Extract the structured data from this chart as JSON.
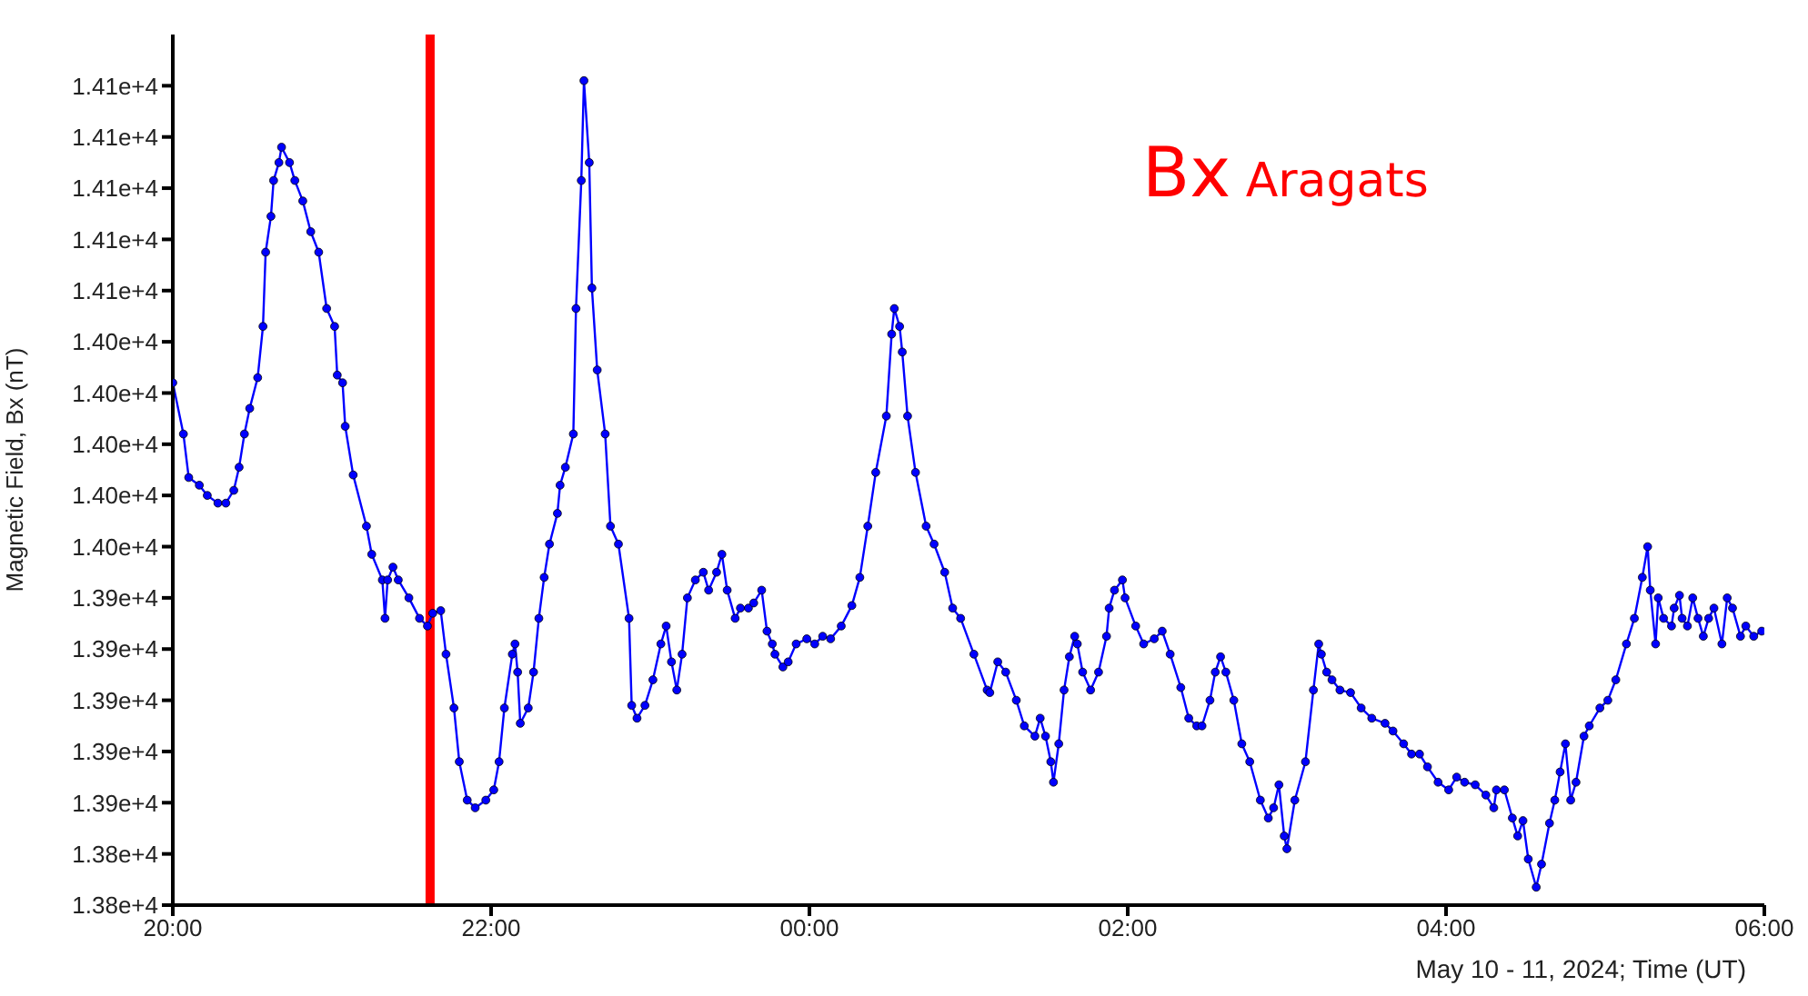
{
  "chart_data": {
    "type": "line",
    "xlabel": "May 10 - 11, 2024; Time (UT)",
    "ylabel": "Magnetic Field, Bx (nT)",
    "annotations": [
      "Bx Aragats"
    ],
    "xlim": [
      "2024-05-10T20:00",
      "2024-05-11T06:00"
    ],
    "xticks": [
      {
        "value": "2024-05-10T20:00",
        "label": "20:00"
      },
      {
        "value": "2024-05-10T22:00",
        "label": "22:00"
      },
      {
        "value": "2024-05-11T00:00",
        "label": "00:00"
      },
      {
        "value": "2024-05-11T02:00",
        "label": "02:00"
      },
      {
        "value": "2024-05-11T04:00",
        "label": "04:00"
      },
      {
        "value": "2024-05-11T06:00",
        "label": "06:00"
      }
    ],
    "ylim": [
      13820,
      14160
    ],
    "yticks": [
      {
        "value": 13820,
        "label": "1.38e+4"
      },
      {
        "value": 13840,
        "label": "1.38e+4"
      },
      {
        "value": 13860,
        "label": "1.39e+4"
      },
      {
        "value": 13880,
        "label": "1.39e+4"
      },
      {
        "value": 13900,
        "label": "1.39e+4"
      },
      {
        "value": 13920,
        "label": "1.39e+4"
      },
      {
        "value": 13940,
        "label": "1.39e+4"
      },
      {
        "value": 13960,
        "label": "1.40e+4"
      },
      {
        "value": 13980,
        "label": "1.40e+4"
      },
      {
        "value": 14000,
        "label": "1.40e+4"
      },
      {
        "value": 14020,
        "label": "1.40e+4"
      },
      {
        "value": 14040,
        "label": "1.40e+4"
      },
      {
        "value": 14060,
        "label": "1.41e+4"
      },
      {
        "value": 14080,
        "label": "1.41e+4"
      },
      {
        "value": 14100,
        "label": "1.41e+4"
      },
      {
        "value": 14120,
        "label": "1.41e+4"
      },
      {
        "value": 14140,
        "label": "1.41e+4"
      }
    ],
    "grid": false,
    "legend": false,
    "marker": "circle",
    "line_style": "solid",
    "ref_lines": [
      {
        "axis": "x",
        "value": "2024-05-10T21:37",
        "color": "#ff0000"
      }
    ],
    "x": [
      "2024-05-10T20:00",
      "2024-05-10T20:04",
      "2024-05-10T20:06",
      "2024-05-10T20:10",
      "2024-05-10T20:13",
      "2024-05-10T20:17",
      "2024-05-10T20:20",
      "2024-05-10T20:23",
      "2024-05-10T20:25",
      "2024-05-10T20:27",
      "2024-05-10T20:29",
      "2024-05-10T20:32",
      "2024-05-10T20:34",
      "2024-05-10T20:35",
      "2024-05-10T20:37",
      "2024-05-10T20:38",
      "2024-05-10T20:40",
      "2024-05-10T20:41",
      "2024-05-10T20:44",
      "2024-05-10T20:46",
      "2024-05-10T20:49",
      "2024-05-10T20:52",
      "2024-05-10T20:55",
      "2024-05-10T20:58",
      "2024-05-10T21:01",
      "2024-05-10T21:02",
      "2024-05-10T21:04",
      "2024-05-10T21:05",
      "2024-05-10T21:08",
      "2024-05-10T21:13",
      "2024-05-10T21:15",
      "2024-05-10T21:19",
      "2024-05-10T21:20",
      "2024-05-10T21:21",
      "2024-05-10T21:23",
      "2024-05-10T21:25",
      "2024-05-10T21:29",
      "2024-05-10T21:33",
      "2024-05-10T21:36",
      "2024-05-10T21:38",
      "2024-05-10T21:41",
      "2024-05-10T21:43",
      "2024-05-10T21:46",
      "2024-05-10T21:48",
      "2024-05-10T21:51",
      "2024-05-10T21:54",
      "2024-05-10T21:58",
      "2024-05-10T22:01",
      "2024-05-10T22:03",
      "2024-05-10T22:05",
      "2024-05-10T22:08",
      "2024-05-10T22:09",
      "2024-05-10T22:10",
      "2024-05-10T22:11",
      "2024-05-10T22:14",
      "2024-05-10T22:16",
      "2024-05-10T22:18",
      "2024-05-10T22:20",
      "2024-05-10T22:22",
      "2024-05-10T22:25",
      "2024-05-10T22:26",
      "2024-05-10T22:28",
      "2024-05-10T22:31",
      "2024-05-10T22:32",
      "2024-05-10T22:34",
      "2024-05-10T22:35",
      "2024-05-10T22:37",
      "2024-05-10T22:38",
      "2024-05-10T22:40",
      "2024-05-10T22:43",
      "2024-05-10T22:45",
      "2024-05-10T22:48",
      "2024-05-10T22:52",
      "2024-05-10T22:53",
      "2024-05-10T22:55",
      "2024-05-10T22:58",
      "2024-05-10T23:01",
      "2024-05-10T23:04",
      "2024-05-10T23:06",
      "2024-05-10T23:08",
      "2024-05-10T23:10",
      "2024-05-10T23:12",
      "2024-05-10T23:14",
      "2024-05-10T23:17",
      "2024-05-10T23:20",
      "2024-05-10T23:22",
      "2024-05-10T23:25",
      "2024-05-10T23:27",
      "2024-05-10T23:29",
      "2024-05-10T23:32",
      "2024-05-10T23:34",
      "2024-05-10T23:37",
      "2024-05-10T23:39",
      "2024-05-10T23:42",
      "2024-05-10T23:44",
      "2024-05-10T23:46",
      "2024-05-10T23:47",
      "2024-05-10T23:50",
      "2024-05-10T23:52",
      "2024-05-10T23:55",
      "2024-05-10T23:59",
      "2024-05-11T00:02",
      "2024-05-11T00:05",
      "2024-05-11T00:08",
      "2024-05-11T00:12",
      "2024-05-11T00:16",
      "2024-05-11T00:19",
      "2024-05-11T00:22",
      "2024-05-11T00:25",
      "2024-05-11T00:29",
      "2024-05-11T00:31",
      "2024-05-11T00:32",
      "2024-05-11T00:34",
      "2024-05-11T00:35",
      "2024-05-11T00:37",
      "2024-05-11T00:40",
      "2024-05-11T00:44",
      "2024-05-11T00:47",
      "2024-05-11T00:51",
      "2024-05-11T00:54",
      "2024-05-11T00:57",
      "2024-05-11T01:02",
      "2024-05-11T01:07",
      "2024-05-11T01:08",
      "2024-05-11T01:11",
      "2024-05-11T01:14",
      "2024-05-11T01:18",
      "2024-05-11T01:21",
      "2024-05-11T01:25",
      "2024-05-11T01:27",
      "2024-05-11T01:29",
      "2024-05-11T01:31",
      "2024-05-11T01:32",
      "2024-05-11T01:34",
      "2024-05-11T01:36",
      "2024-05-11T01:38",
      "2024-05-11T01:40",
      "2024-05-11T01:41",
      "2024-05-11T01:43",
      "2024-05-11T01:46",
      "2024-05-11T01:49",
      "2024-05-11T01:52",
      "2024-05-11T01:53",
      "2024-05-11T01:55",
      "2024-05-11T01:58",
      "2024-05-11T01:59",
      "2024-05-11T02:03",
      "2024-05-11T02:06",
      "2024-05-11T02:10",
      "2024-05-11T02:13",
      "2024-05-11T02:16",
      "2024-05-11T02:20",
      "2024-05-11T02:23",
      "2024-05-11T02:26",
      "2024-05-11T02:28",
      "2024-05-11T02:31",
      "2024-05-11T02:33",
      "2024-05-11T02:35",
      "2024-05-11T02:37",
      "2024-05-11T02:40",
      "2024-05-11T02:43",
      "2024-05-11T02:46",
      "2024-05-11T02:50",
      "2024-05-11T02:53",
      "2024-05-11T02:55",
      "2024-05-11T02:57",
      "2024-05-11T02:59",
      "2024-05-11T03:00",
      "2024-05-11T03:03",
      "2024-05-11T03:07",
      "2024-05-11T03:10",
      "2024-05-11T03:12",
      "2024-05-11T03:13",
      "2024-05-11T03:15",
      "2024-05-11T03:17",
      "2024-05-11T03:20",
      "2024-05-11T03:24",
      "2024-05-11T03:28",
      "2024-05-11T03:32",
      "2024-05-11T03:37",
      "2024-05-11T03:40",
      "2024-05-11T03:44",
      "2024-05-11T03:47",
      "2024-05-11T03:50",
      "2024-05-11T03:53",
      "2024-05-11T03:57",
      "2024-05-11T04:01",
      "2024-05-11T04:04",
      "2024-05-11T04:07",
      "2024-05-11T04:11",
      "2024-05-11T04:15",
      "2024-05-11T04:18",
      "2024-05-11T04:19",
      "2024-05-11T04:22",
      "2024-05-11T04:25",
      "2024-05-11T04:27",
      "2024-05-11T04:29",
      "2024-05-11T04:31",
      "2024-05-11T04:34",
      "2024-05-11T04:36",
      "2024-05-11T04:39",
      "2024-05-11T04:41",
      "2024-05-11T04:43",
      "2024-05-11T04:45",
      "2024-05-11T04:47",
      "2024-05-11T04:49",
      "2024-05-11T04:52",
      "2024-05-11T04:54",
      "2024-05-11T04:58",
      "2024-05-11T05:01",
      "2024-05-11T05:04",
      "2024-05-11T05:08",
      "2024-05-11T05:11",
      "2024-05-11T05:14",
      "2024-05-11T05:16",
      "2024-05-11T05:17",
      "2024-05-11T05:19",
      "2024-05-11T05:20",
      "2024-05-11T05:22",
      "2024-05-11T05:25",
      "2024-05-11T05:26",
      "2024-05-11T05:28",
      "2024-05-11T05:29",
      "2024-05-11T05:31",
      "2024-05-11T05:33",
      "2024-05-11T05:35",
      "2024-05-11T05:37",
      "2024-05-11T05:39",
      "2024-05-11T05:41",
      "2024-05-11T05:44",
      "2024-05-11T05:46",
      "2024-05-11T05:48",
      "2024-05-11T05:51",
      "2024-05-11T05:53",
      "2024-05-11T05:56",
      "2024-05-11T05:59"
    ],
    "series": [
      {
        "color": "#0000ff",
        "values": [
          14024,
          14004,
          13987,
          13984,
          13980,
          13977,
          13977,
          13982,
          13991,
          14004,
          14014,
          14026,
          14046,
          14075,
          14089,
          14103,
          14110,
          14116,
          14110,
          14103,
          14095,
          14083,
          14075,
          14053,
          14046,
          14027,
          14024,
          14007,
          13988,
          13968,
          13957,
          13947,
          13932,
          13947,
          13952,
          13947,
          13940,
          13932,
          13929,
          13934,
          13935,
          13918,
          13897,
          13876,
          13861,
          13858,
          13861,
          13865,
          13876,
          13897,
          13918,
          13922,
          13911,
          13891,
          13897,
          13911,
          13932,
          13948,
          13961,
          13973,
          13984,
          13991,
          14004,
          14053,
          14103,
          14142,
          14110,
          14061,
          14029,
          14004,
          13968,
          13961,
          13932,
          13898,
          13893,
          13898,
          13908,
          13922,
          13929,
          13915,
          13904,
          13918,
          13940,
          13947,
          13950,
          13943,
          13950,
          13957,
          13943,
          13932,
          13936,
          13936,
          13938,
          13943,
          13927,
          13922,
          13918,
          13913,
          13915,
          13922,
          13924,
          13922,
          13925,
          13924,
          13929,
          13937,
          13948,
          13968,
          13989,
          14011,
          14043,
          14053,
          14046,
          14036,
          14011,
          13989,
          13968,
          13961,
          13950,
          13936,
          13932,
          13918,
          13904,
          13903,
          13915,
          13911,
          13900,
          13890,
          13886,
          13893,
          13886,
          13876,
          13868,
          13883,
          13904,
          13917,
          13925,
          13922,
          13911,
          13904,
          13911,
          13925,
          13936,
          13943,
          13947,
          13940,
          13929,
          13922,
          13924,
          13927,
          13918,
          13905,
          13893,
          13890,
          13890,
          13900,
          13911,
          13917,
          13911,
          13900,
          13883,
          13876,
          13861,
          13854,
          13858,
          13867,
          13847,
          13842,
          13861,
          13876,
          13904,
          13922,
          13918,
          13911,
          13908,
          13904,
          13903,
          13897,
          13893,
          13891,
          13888,
          13883,
          13879,
          13879,
          13874,
          13868,
          13865,
          13870,
          13868,
          13867,
          13863,
          13858,
          13865,
          13865,
          13854,
          13847,
          13853,
          13838,
          13827,
          13836,
          13852,
          13861,
          13872,
          13883,
          13861,
          13868,
          13886,
          13890,
          13897,
          13900,
          13908,
          13922,
          13932,
          13948,
          13960,
          13943,
          13922,
          13940,
          13932,
          13929,
          13936,
          13941,
          13932,
          13929,
          13940,
          13932,
          13925,
          13932,
          13936,
          13922,
          13940,
          13936,
          13925,
          13929,
          13925,
          13927
        ]
      }
    ]
  }
}
